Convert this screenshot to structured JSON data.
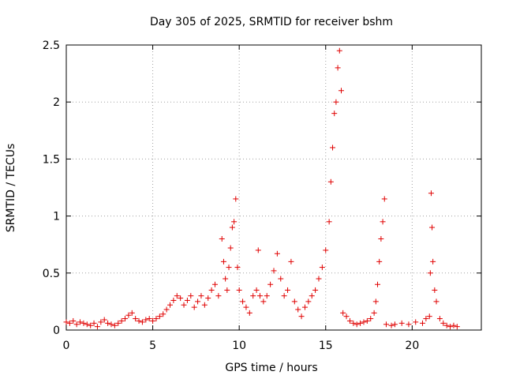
{
  "chart_data": {
    "type": "scatter",
    "title": "Day 305 of 2025, SRMTID for receiver bshm",
    "xlabel": "GPS time / hours",
    "ylabel": "SRMTID / TECUs",
    "xlim": [
      0,
      24
    ],
    "ylim": [
      0,
      2.5
    ],
    "x_ticks": [
      0,
      5,
      10,
      15,
      20
    ],
    "x_tick_labels": [
      "0",
      "5",
      "10",
      "15",
      "20"
    ],
    "y_ticks": [
      0,
      0.5,
      1,
      1.5,
      2,
      2.5
    ],
    "y_tick_labels": [
      "0",
      "0.5",
      "1",
      "1.5",
      "2",
      "2.5"
    ],
    "grid": true,
    "marker": "+",
    "colors": {
      "series": "#e00000",
      "grid": "#a0a0a0",
      "axis": "#000000"
    },
    "series": [
      {
        "name": "bshm",
        "points": [
          [
            0.0,
            0.07
          ],
          [
            0.2,
            0.06
          ],
          [
            0.4,
            0.08
          ],
          [
            0.6,
            0.05
          ],
          [
            0.8,
            0.07
          ],
          [
            1.0,
            0.06
          ],
          [
            1.2,
            0.05
          ],
          [
            1.4,
            0.04
          ],
          [
            1.6,
            0.06
          ],
          [
            1.8,
            0.03
          ],
          [
            2.0,
            0.07
          ],
          [
            2.2,
            0.09
          ],
          [
            2.4,
            0.06
          ],
          [
            2.6,
            0.05
          ],
          [
            2.8,
            0.04
          ],
          [
            3.0,
            0.06
          ],
          [
            3.2,
            0.08
          ],
          [
            3.4,
            0.1
          ],
          [
            3.6,
            0.13
          ],
          [
            3.8,
            0.15
          ],
          [
            4.0,
            0.1
          ],
          [
            4.2,
            0.08
          ],
          [
            4.4,
            0.07
          ],
          [
            4.6,
            0.09
          ],
          [
            4.8,
            0.1
          ],
          [
            5.0,
            0.08
          ],
          [
            5.2,
            0.1
          ],
          [
            5.4,
            0.12
          ],
          [
            5.6,
            0.14
          ],
          [
            5.8,
            0.18
          ],
          [
            6.0,
            0.22
          ],
          [
            6.2,
            0.26
          ],
          [
            6.4,
            0.3
          ],
          [
            6.6,
            0.28
          ],
          [
            6.8,
            0.22
          ],
          [
            7.0,
            0.26
          ],
          [
            7.2,
            0.3
          ],
          [
            7.4,
            0.2
          ],
          [
            7.6,
            0.25
          ],
          [
            7.8,
            0.3
          ],
          [
            8.0,
            0.22
          ],
          [
            8.2,
            0.28
          ],
          [
            8.4,
            0.35
          ],
          [
            8.6,
            0.4
          ],
          [
            8.8,
            0.3
          ],
          [
            9.0,
            0.8
          ],
          [
            9.1,
            0.6
          ],
          [
            9.2,
            0.45
          ],
          [
            9.3,
            0.35
          ],
          [
            9.4,
            0.55
          ],
          [
            9.5,
            0.72
          ],
          [
            9.6,
            0.9
          ],
          [
            9.7,
            0.95
          ],
          [
            9.8,
            1.15
          ],
          [
            9.9,
            0.55
          ],
          [
            10.0,
            0.35
          ],
          [
            10.2,
            0.25
          ],
          [
            10.4,
            0.2
          ],
          [
            10.6,
            0.15
          ],
          [
            10.8,
            0.3
          ],
          [
            11.0,
            0.35
          ],
          [
            11.1,
            0.7
          ],
          [
            11.2,
            0.3
          ],
          [
            11.4,
            0.25
          ],
          [
            11.6,
            0.3
          ],
          [
            11.8,
            0.4
          ],
          [
            12.0,
            0.52
          ],
          [
            12.2,
            0.67
          ],
          [
            12.4,
            0.45
          ],
          [
            12.6,
            0.3
          ],
          [
            12.8,
            0.35
          ],
          [
            13.0,
            0.6
          ],
          [
            13.2,
            0.25
          ],
          [
            13.4,
            0.18
          ],
          [
            13.6,
            0.12
          ],
          [
            13.8,
            0.2
          ],
          [
            14.0,
            0.25
          ],
          [
            14.2,
            0.3
          ],
          [
            14.4,
            0.35
          ],
          [
            14.6,
            0.45
          ],
          [
            14.8,
            0.55
          ],
          [
            15.0,
            0.7
          ],
          [
            15.2,
            0.95
          ],
          [
            15.3,
            1.3
          ],
          [
            15.4,
            1.6
          ],
          [
            15.5,
            1.9
          ],
          [
            15.6,
            2.0
          ],
          [
            15.7,
            2.3
          ],
          [
            15.8,
            2.45
          ],
          [
            15.9,
            2.1
          ],
          [
            16.0,
            0.15
          ],
          [
            16.2,
            0.12
          ],
          [
            16.4,
            0.08
          ],
          [
            16.6,
            0.06
          ],
          [
            16.8,
            0.05
          ],
          [
            17.0,
            0.06
          ],
          [
            17.2,
            0.07
          ],
          [
            17.4,
            0.08
          ],
          [
            17.6,
            0.1
          ],
          [
            17.8,
            0.15
          ],
          [
            17.9,
            0.25
          ],
          [
            18.0,
            0.4
          ],
          [
            18.1,
            0.6
          ],
          [
            18.2,
            0.8
          ],
          [
            18.3,
            0.95
          ],
          [
            18.4,
            1.15
          ],
          [
            18.5,
            0.05
          ],
          [
            18.8,
            0.04
          ],
          [
            19.0,
            0.05
          ],
          [
            19.4,
            0.06
          ],
          [
            19.8,
            0.05
          ],
          [
            20.2,
            0.07
          ],
          [
            20.6,
            0.06
          ],
          [
            20.8,
            0.1
          ],
          [
            21.0,
            0.12
          ],
          [
            21.05,
            0.5
          ],
          [
            21.1,
            1.2
          ],
          [
            21.15,
            0.9
          ],
          [
            21.2,
            0.6
          ],
          [
            21.3,
            0.35
          ],
          [
            21.4,
            0.25
          ],
          [
            21.6,
            0.1
          ],
          [
            21.8,
            0.06
          ],
          [
            22.0,
            0.04
          ],
          [
            22.2,
            0.03
          ],
          [
            22.4,
            0.04
          ],
          [
            22.6,
            0.03
          ]
        ]
      }
    ]
  }
}
